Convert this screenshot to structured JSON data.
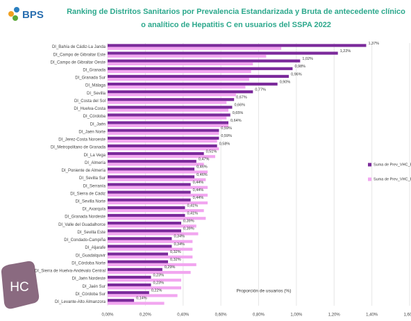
{
  "logo": "BPS",
  "badge": "HC",
  "chart_data": {
    "type": "hbar",
    "title": [
      "Ranking de Distritos Sanitarios por Prevalencia Estandarizada y Bruta de antecedente clínico",
      "o analítico de Hepatitis C en usuarios del SSPA 2022"
    ],
    "x_label": "Proporción de usuarios (%)",
    "categories": [
      "DI_Bahía de Cádiz-La Janda",
      "DI_Campo de Gibraltar Este",
      "DI_Campo de Gibraltar Oeste",
      "DI_Granada",
      "DI_Granada Sur",
      "DI_Málaga",
      "DI_Sevilla",
      "DI_Costa del Sol",
      "DI_Huelva-Costa",
      "DI_Córdoba",
      "DI_Jaén",
      "DI_Jaén Norte",
      "DI_Jerez-Costa Noroeste",
      "DI_Metropolitano de Granada",
      "DI_La Vega",
      "DI_Almería",
      "DI_Poniente de Almería",
      "DI_Sevilla Sur",
      "DI_Serranía",
      "DI_Sierra de Cádiz",
      "DI_Sevilla Norte",
      "DI_Axarquía",
      "DI_Granada Nordeste",
      "DI_Valle del Guadalhorce",
      "DI_Sevilla Este",
      "DI_Condado-Campiña",
      "DI_Aljarafe",
      "DI_Guadalquivir",
      "DI_Córdoba Norte",
      "DI_Sierra de Huelva-Andévalo Central",
      "DI_Jaén Nordeste",
      "DI_Jaén Sur",
      "DI_Córdoba Sur",
      "DI_Levante-Alto Almanzora"
    ],
    "series": [
      {
        "name": "Suma de Prev_VHC_E",
        "color": "#7b2a9b",
        "values": [
          1.37,
          1.22,
          1.02,
          0.98,
          0.96,
          0.9,
          0.77,
          0.67,
          0.66,
          0.65,
          0.64,
          0.59,
          0.59,
          0.58,
          0.51,
          0.47,
          0.46,
          0.46,
          0.44,
          0.44,
          0.44,
          0.41,
          0.41,
          0.39,
          0.39,
          0.34,
          0.34,
          0.32,
          0.32,
          0.29,
          0.23,
          0.23,
          0.22,
          0.14
        ],
        "value_labels": [
          "1,37%",
          "1,22%",
          "1,02%",
          "0,98%",
          "0,96%",
          "0,90%",
          "0,77%",
          "0,67%",
          "0,66%",
          "0,65%",
          "0,64%",
          "0,59%",
          "0,59%",
          "0,58%",
          "0,51%",
          "0,47%",
          "0,46%",
          "0,46%",
          "0,44%",
          "0,44%",
          "0,44%",
          "0,41%",
          "0,41%",
          "0,39%",
          "0,39%",
          "0,34%",
          "0,34%",
          "0,32%",
          "0,32%",
          "0,29%",
          "0,23%",
          "0,23%",
          "0,22%",
          "0,14%"
        ]
      },
      {
        "name": "Suma de Prev_VHC_B",
        "color": "#f2a6f0",
        "values": [
          0.92,
          0.84,
          0.77,
          0.76,
          0.75,
          0.73,
          0.68,
          0.63,
          0.64,
          0.63,
          0.64,
          0.59,
          0.58,
          0.59,
          0.57,
          0.51,
          0.53,
          0.52,
          0.53,
          0.53,
          0.53,
          0.51,
          0.52,
          0.47,
          0.48,
          0.45,
          0.45,
          0.45,
          0.47,
          0.44,
          0.39,
          0.39,
          0.37,
          0.3
        ]
      }
    ],
    "xlim": [
      0,
      1.6
    ],
    "xticks": [
      {
        "value": 0,
        "label": "0,00%"
      },
      {
        "value": 0.2,
        "label": "0,20%"
      },
      {
        "value": 0.4,
        "label": "0,40%"
      },
      {
        "value": 0.6,
        "label": "0,60%"
      },
      {
        "value": 0.8,
        "label": "0,80%"
      },
      {
        "value": 1.0,
        "label": "1,00%"
      },
      {
        "value": 1.2,
        "label": "1,20%"
      },
      {
        "value": 1.4,
        "label": "1,40%"
      },
      {
        "value": 1.6,
        "label": "1,60%"
      }
    ],
    "grid": true
  }
}
